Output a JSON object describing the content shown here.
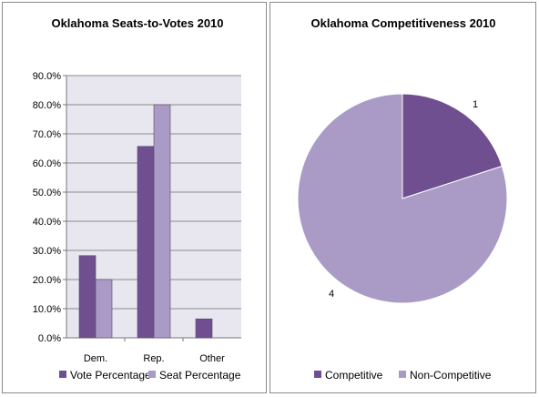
{
  "chart_data": [
    {
      "type": "bar",
      "title": "Oklahoma Seats-to-Votes 2010",
      "categories": [
        "Dem.",
        "Rep.",
        "Other"
      ],
      "series": [
        {
          "name": "Vote Percentage",
          "color": "#6f4f8f",
          "values": [
            28.2,
            65.7,
            6.5
          ]
        },
        {
          "name": "Seat Percentage",
          "color": "#a99bc6",
          "values": [
            20.0,
            80.0,
            0.0
          ]
        }
      ],
      "ylim": [
        0,
        90
      ],
      "yticks": [
        "0.0%",
        "10.0%",
        "20.0%",
        "30.0%",
        "40.0%",
        "50.0%",
        "60.0%",
        "70.0%",
        "80.0%",
        "90.0%"
      ],
      "ytick_values": [
        0,
        10,
        20,
        30,
        40,
        50,
        60,
        70,
        80,
        90
      ],
      "grid": true,
      "legend": "bottom",
      "plot_background": "#e8e6ee"
    },
    {
      "type": "pie",
      "title": "Oklahoma Competitiveness 2010",
      "labels": [
        "Competitive",
        "Non-Competitive"
      ],
      "values": [
        1,
        4
      ],
      "value_labels": [
        "1",
        "4"
      ],
      "colors": [
        "#6f4f8f",
        "#a99bc6"
      ],
      "legend": "bottom"
    }
  ]
}
